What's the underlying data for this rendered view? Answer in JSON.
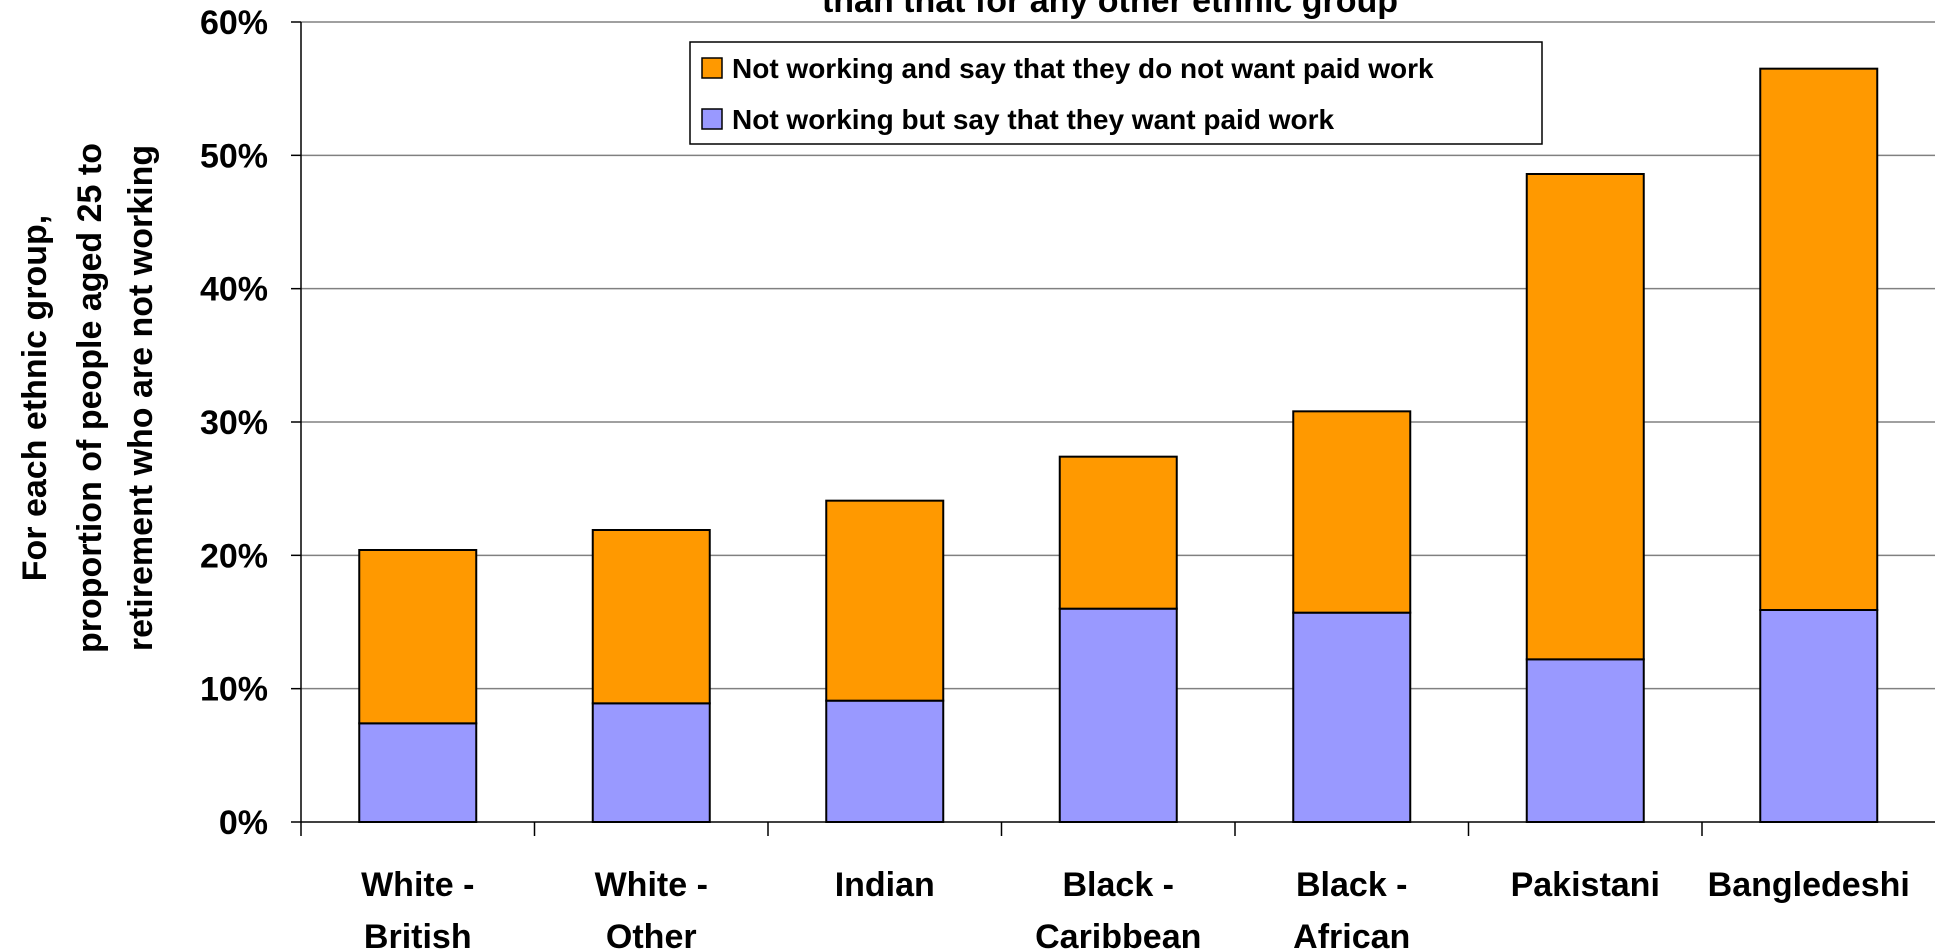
{
  "chart_data": {
    "type": "bar",
    "stacked": true,
    "title": "than that for any other ethnic group",
    "ylabel": [
      "For each ethnic group,",
      "proportion of people aged 25 to",
      "retirement who are not working"
    ],
    "categories": [
      [
        "White -",
        "British"
      ],
      [
        "White -",
        "Other"
      ],
      [
        "Indian"
      ],
      [
        "Black -",
        "Caribbean"
      ],
      [
        "Black -",
        "African"
      ],
      [
        "Pakistani"
      ],
      [
        "Bangledeshi"
      ]
    ],
    "y_ticks": [
      "0%",
      "10%",
      "20%",
      "30%",
      "40%",
      "50%",
      "60%"
    ],
    "ylim": [
      0,
      60
    ],
    "grid": true,
    "legend_position": "top",
    "series": [
      {
        "name": "Not working but say that they want paid work",
        "color": "#9999ff",
        "values": [
          7.4,
          8.9,
          9.1,
          16.0,
          15.7,
          12.2,
          15.9
        ]
      },
      {
        "name": "Not working and say that they do not want paid work",
        "color": "#ff9900",
        "values": [
          13.0,
          13.0,
          15.0,
          11.4,
          15.1,
          36.4,
          40.6
        ]
      }
    ]
  }
}
